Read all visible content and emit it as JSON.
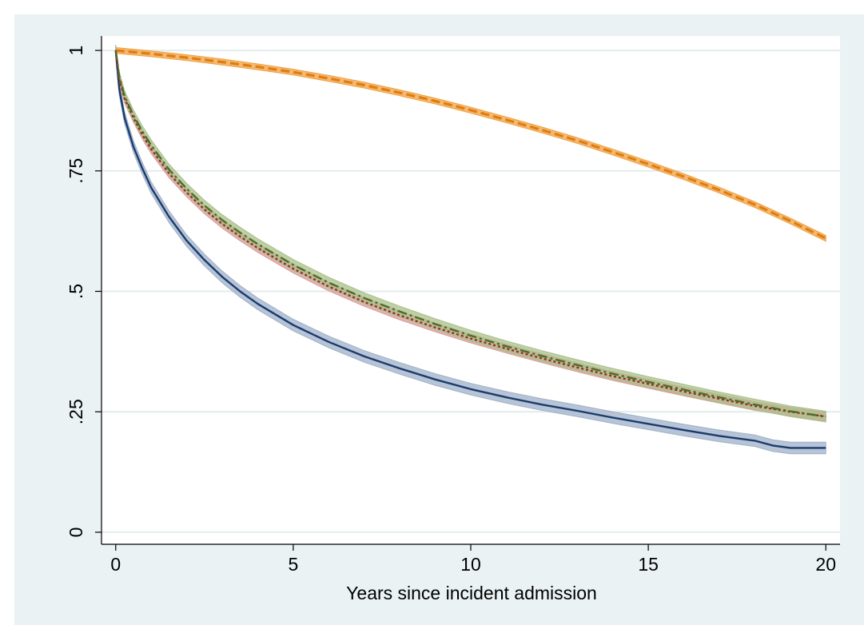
{
  "chart_data": {
    "type": "line",
    "title": "",
    "xlabel": "Years since incident admission",
    "ylabel": "",
    "xlim": [
      -0.4,
      20.4
    ],
    "ylim": [
      -0.025,
      1.03
    ],
    "x_ticks": [
      0,
      5,
      10,
      15,
      20
    ],
    "x_tick_labels": [
      "0",
      "5",
      "10",
      "15",
      "20"
    ],
    "y_ticks": [
      0,
      0.25,
      0.5,
      0.75,
      1
    ],
    "y_tick_labels": [
      "0",
      ".25",
      ".5",
      ".75",
      "1"
    ],
    "grid": "horizontal",
    "legend": "none",
    "series": [
      {
        "style": "dashed",
        "color": "#e07d10",
        "band_color": "#f0a040",
        "x": [
          0,
          1,
          2,
          3,
          4,
          5,
          6,
          7,
          8,
          9,
          10,
          11,
          12,
          13,
          14,
          15,
          16,
          17,
          18,
          19,
          20
        ],
        "y": [
          1.0,
          0.993,
          0.985,
          0.976,
          0.966,
          0.955,
          0.942,
          0.928,
          0.912,
          0.895,
          0.876,
          0.856,
          0.835,
          0.813,
          0.789,
          0.764,
          0.738,
          0.71,
          0.68,
          0.646,
          0.61
        ],
        "band": 0.006
      },
      {
        "style": "solid",
        "color": "#1a3a6e",
        "band_color": "#9fb0c8",
        "x": [
          0,
          0.1,
          0.25,
          0.5,
          0.75,
          1,
          1.5,
          2,
          2.5,
          3,
          3.5,
          4,
          5,
          6,
          7,
          8,
          9,
          10,
          11,
          12,
          13,
          14,
          15,
          16,
          17,
          18,
          18.5,
          19,
          20
        ],
        "y": [
          1.0,
          0.92,
          0.86,
          0.8,
          0.755,
          0.715,
          0.655,
          0.605,
          0.565,
          0.53,
          0.5,
          0.474,
          0.43,
          0.395,
          0.365,
          0.34,
          0.317,
          0.297,
          0.28,
          0.265,
          0.252,
          0.238,
          0.225,
          0.212,
          0.2,
          0.19,
          0.18,
          0.175,
          0.175
        ],
        "band": 0.012
      },
      {
        "style": "dotted",
        "color": "#9c2a2a",
        "band_color": "#d99a9a",
        "x": [
          0,
          0.1,
          0.25,
          0.5,
          0.75,
          1,
          1.5,
          2,
          2.5,
          3,
          3.5,
          4,
          5,
          6,
          7,
          8,
          9,
          10,
          11,
          12,
          13,
          14,
          15,
          16,
          17,
          18,
          19,
          20
        ],
        "y": [
          1.0,
          0.94,
          0.9,
          0.86,
          0.825,
          0.795,
          0.745,
          0.705,
          0.67,
          0.64,
          0.614,
          0.59,
          0.547,
          0.51,
          0.478,
          0.45,
          0.425,
          0.402,
          0.381,
          0.361,
          0.342,
          0.324,
          0.308,
          0.292,
          0.277,
          0.262,
          0.25,
          0.24
        ],
        "band": 0.009
      },
      {
        "style": "dash-dot",
        "color": "#4f6b2a",
        "band_color": "#a9bf88",
        "x": [
          0,
          0.1,
          0.25,
          0.5,
          0.75,
          1,
          1.5,
          2,
          2.5,
          3,
          3.5,
          4,
          5,
          6,
          7,
          8,
          9,
          10,
          11,
          12,
          13,
          14,
          15,
          16,
          17,
          18,
          19,
          20
        ],
        "y": [
          1.0,
          0.945,
          0.905,
          0.865,
          0.832,
          0.803,
          0.753,
          0.713,
          0.678,
          0.648,
          0.622,
          0.598,
          0.555,
          0.518,
          0.486,
          0.458,
          0.432,
          0.408,
          0.386,
          0.366,
          0.347,
          0.329,
          0.312,
          0.296,
          0.28,
          0.265,
          0.251,
          0.24
        ],
        "band": 0.011
      }
    ]
  }
}
